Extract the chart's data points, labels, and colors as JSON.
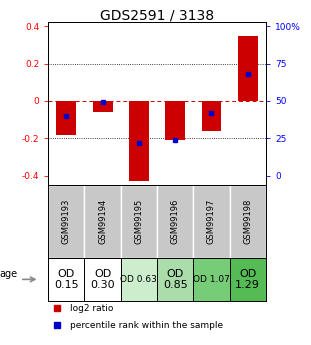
{
  "title": "GDS2591 / 3138",
  "samples": [
    "GSM99193",
    "GSM99194",
    "GSM99195",
    "GSM99196",
    "GSM99197",
    "GSM99198"
  ],
  "log2_ratios": [
    -0.18,
    -0.06,
    -0.43,
    -0.21,
    -0.16,
    0.35
  ],
  "percentile_ranks": [
    40,
    49,
    22,
    24,
    42,
    68
  ],
  "age_labels": [
    "OD\n0.15",
    "OD\n0.30",
    "OD 0.63",
    "OD\n0.85",
    "OD 1.07",
    "OD\n1.29"
  ],
  "age_fontsize": [
    8,
    8,
    6.5,
    8,
    6.5,
    8
  ],
  "cell_colors": [
    "#ffffff",
    "#ffffff",
    "#cceecc",
    "#aaddaa",
    "#77cc77",
    "#55bb55"
  ],
  "ylim": [
    -0.45,
    0.42
  ],
  "yticks_left": [
    -0.4,
    -0.2,
    0.0,
    0.2,
    0.4
  ],
  "yticks_right": [
    0,
    25,
    50,
    75,
    100
  ],
  "bar_color": "#cc0000",
  "pct_color": "#0000cc",
  "grid_color": "#000000",
  "zero_line_color": "#cc0000",
  "background_plot": "#ffffff",
  "background_table": "#c8c8c8",
  "title_fontsize": 10
}
